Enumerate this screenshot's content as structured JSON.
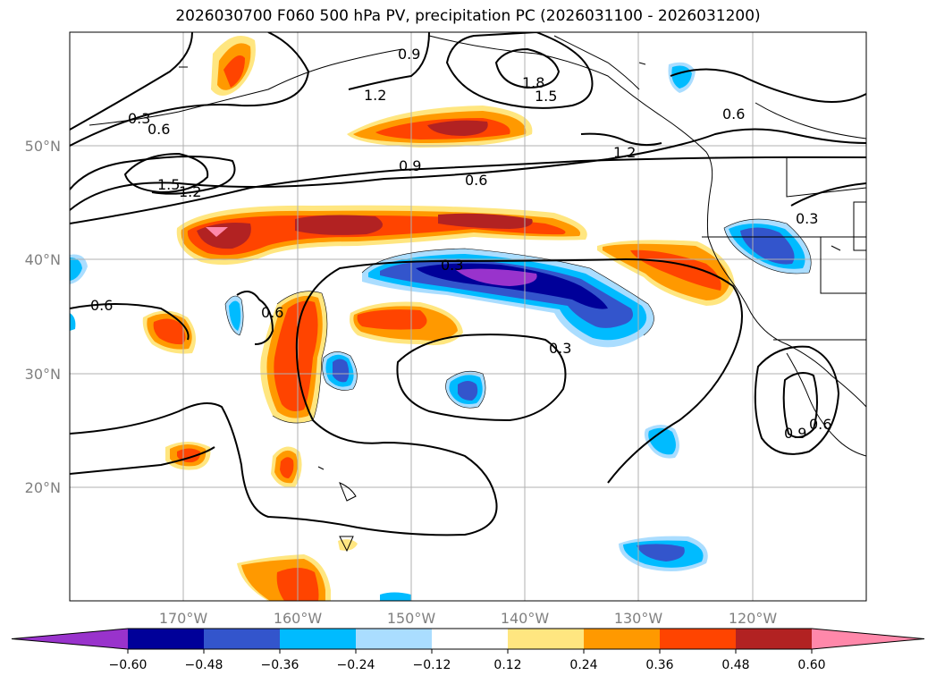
{
  "title": "2026030700 F060 500 hPa PV, precipitation PC (2026031100 - 2026031200)",
  "map": {
    "lat_labels": [
      "50°N",
      "40°N",
      "30°N",
      "20°N"
    ],
    "lon_labels": [
      "170°W",
      "160°W",
      "150°W",
      "140°W",
      "130°W",
      "120°W"
    ],
    "contour_labels": [
      "0.9",
      "1.8",
      "1.5",
      "1.2",
      "0.3",
      "0.6",
      "0.6",
      "1.5",
      "1.2",
      "0.9",
      "0.6",
      "1.2",
      "0.3",
      "0.3",
      "0.6",
      "0.6",
      "0.3",
      "0.9",
      "0.6"
    ]
  },
  "colorbar": {
    "tick_labels": [
      "−0.60",
      "−0.48",
      "−0.36",
      "−0.24",
      "−0.12",
      "0.12",
      "0.24",
      "0.36",
      "0.48",
      "0.60"
    ],
    "colors": [
      "#9933cc",
      "#000099",
      "#3355cc",
      "#00bbff",
      "#aaddff",
      "#ffffff",
      "#ffe680",
      "#ff9900",
      "#ff4400",
      "#b22222",
      "#ff88aa"
    ]
  }
}
